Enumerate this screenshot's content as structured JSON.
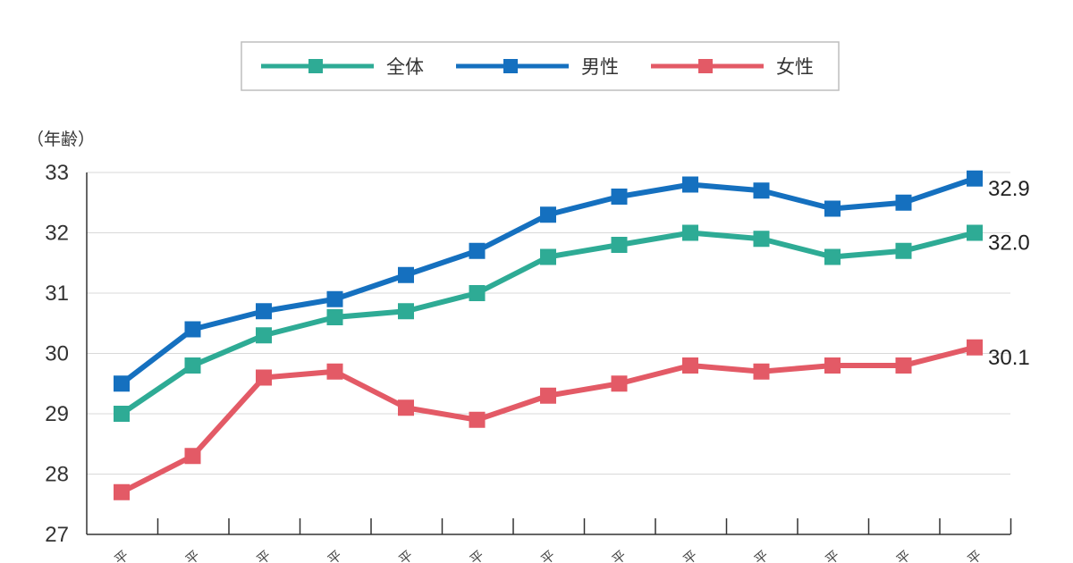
{
  "chart_data": {
    "type": "line",
    "ylabel": "（年齢）",
    "ylim": [
      27,
      33
    ],
    "yticks": [
      27,
      28,
      29,
      30,
      31,
      32,
      33
    ],
    "grid": true,
    "legend_position": "top-center",
    "x_tick_labels": [
      "平",
      "平",
      "平",
      "平",
      "平",
      "平",
      "平",
      "平",
      "平",
      "平",
      "平",
      "平",
      "平"
    ],
    "series": [
      {
        "name": "全体",
        "color": "#2eab95",
        "values": [
          29.0,
          29.8,
          30.3,
          30.6,
          30.7,
          31.0,
          31.6,
          31.8,
          32.0,
          31.9,
          31.6,
          31.7,
          32.0
        ],
        "end_label": "32.0"
      },
      {
        "name": "男性",
        "color": "#1570bf",
        "values": [
          29.5,
          30.4,
          30.7,
          30.9,
          31.3,
          31.7,
          32.3,
          32.6,
          32.8,
          32.7,
          32.4,
          32.5,
          32.9
        ],
        "end_label": "32.9"
      },
      {
        "name": "女性",
        "color": "#e35a66",
        "values": [
          27.7,
          28.3,
          29.6,
          29.7,
          29.1,
          28.9,
          29.3,
          29.5,
          29.8,
          29.7,
          29.8,
          29.8,
          30.1
        ],
        "end_label": "30.1"
      }
    ]
  }
}
